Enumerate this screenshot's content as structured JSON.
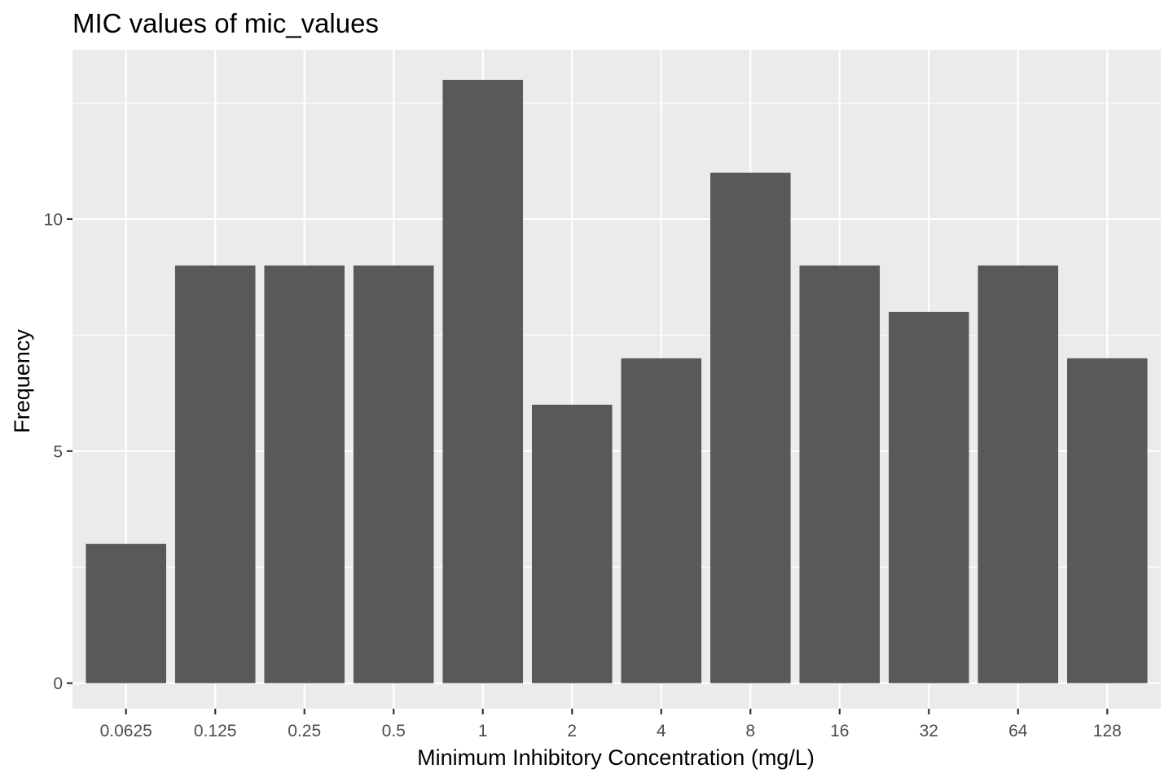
{
  "chart_data": {
    "type": "bar",
    "title": "MIC values of mic_values",
    "xlabel": "Minimum Inhibitory Concentration (mg/L)",
    "ylabel": "Frequency",
    "categories": [
      "0.0625",
      "0.125",
      "0.25",
      "0.5",
      "1",
      "2",
      "4",
      "8",
      "16",
      "32",
      "64",
      "128"
    ],
    "values": [
      3,
      9,
      9,
      9,
      13,
      6,
      7,
      11,
      9,
      8,
      9,
      7
    ],
    "ylim": [
      -0.55,
      13.65
    ],
    "y_ticks": [
      0,
      5,
      10
    ],
    "y_tick_labels": [
      "0",
      "5",
      "10"
    ],
    "y_minor_ticks": [
      2.5,
      7.5,
      12.5
    ],
    "grid": true,
    "legend": "none",
    "colors": {
      "bar": "#595959",
      "panel_background": "#ebebeb",
      "grid": "#ffffff",
      "tick": "#333333",
      "tick_label": "#4d4d4d"
    }
  }
}
